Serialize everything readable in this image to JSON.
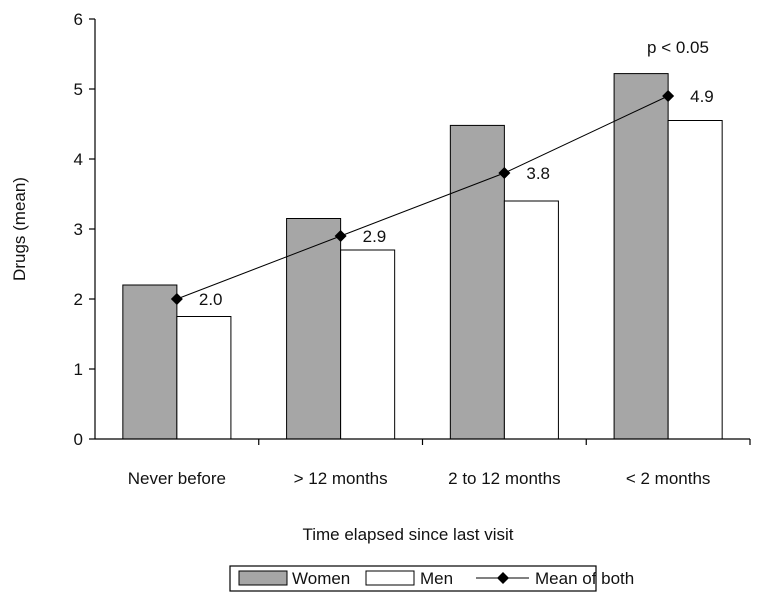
{
  "chart_data": {
    "type": "bar",
    "title": "",
    "xlabel": "Time elapsed since last visit",
    "ylabel": "Drugs (mean)",
    "ylim": [
      0,
      6
    ],
    "yticks": [
      "0",
      "1",
      "2",
      "3",
      "4",
      "5",
      "6"
    ],
    "categories": [
      "Never before",
      "> 12 months",
      "2 to 12 months",
      "< 2 months"
    ],
    "series": [
      {
        "name": "Women",
        "kind": "bar",
        "values": [
          2.2,
          3.15,
          4.48,
          5.22
        ],
        "color": "#a6a6a6"
      },
      {
        "name": "Men",
        "kind": "bar",
        "values": [
          1.75,
          2.7,
          3.4,
          4.55
        ],
        "color": "#ffffff"
      },
      {
        "name": "Mean of both",
        "kind": "line",
        "values": [
          2.0,
          2.9,
          3.8,
          4.9
        ],
        "labels": [
          "2.0",
          "2.9",
          "3.8",
          "4.9"
        ],
        "color": "#000000"
      }
    ],
    "annotation": "p < 0.05",
    "grid": false,
    "legend_position": "bottom"
  }
}
